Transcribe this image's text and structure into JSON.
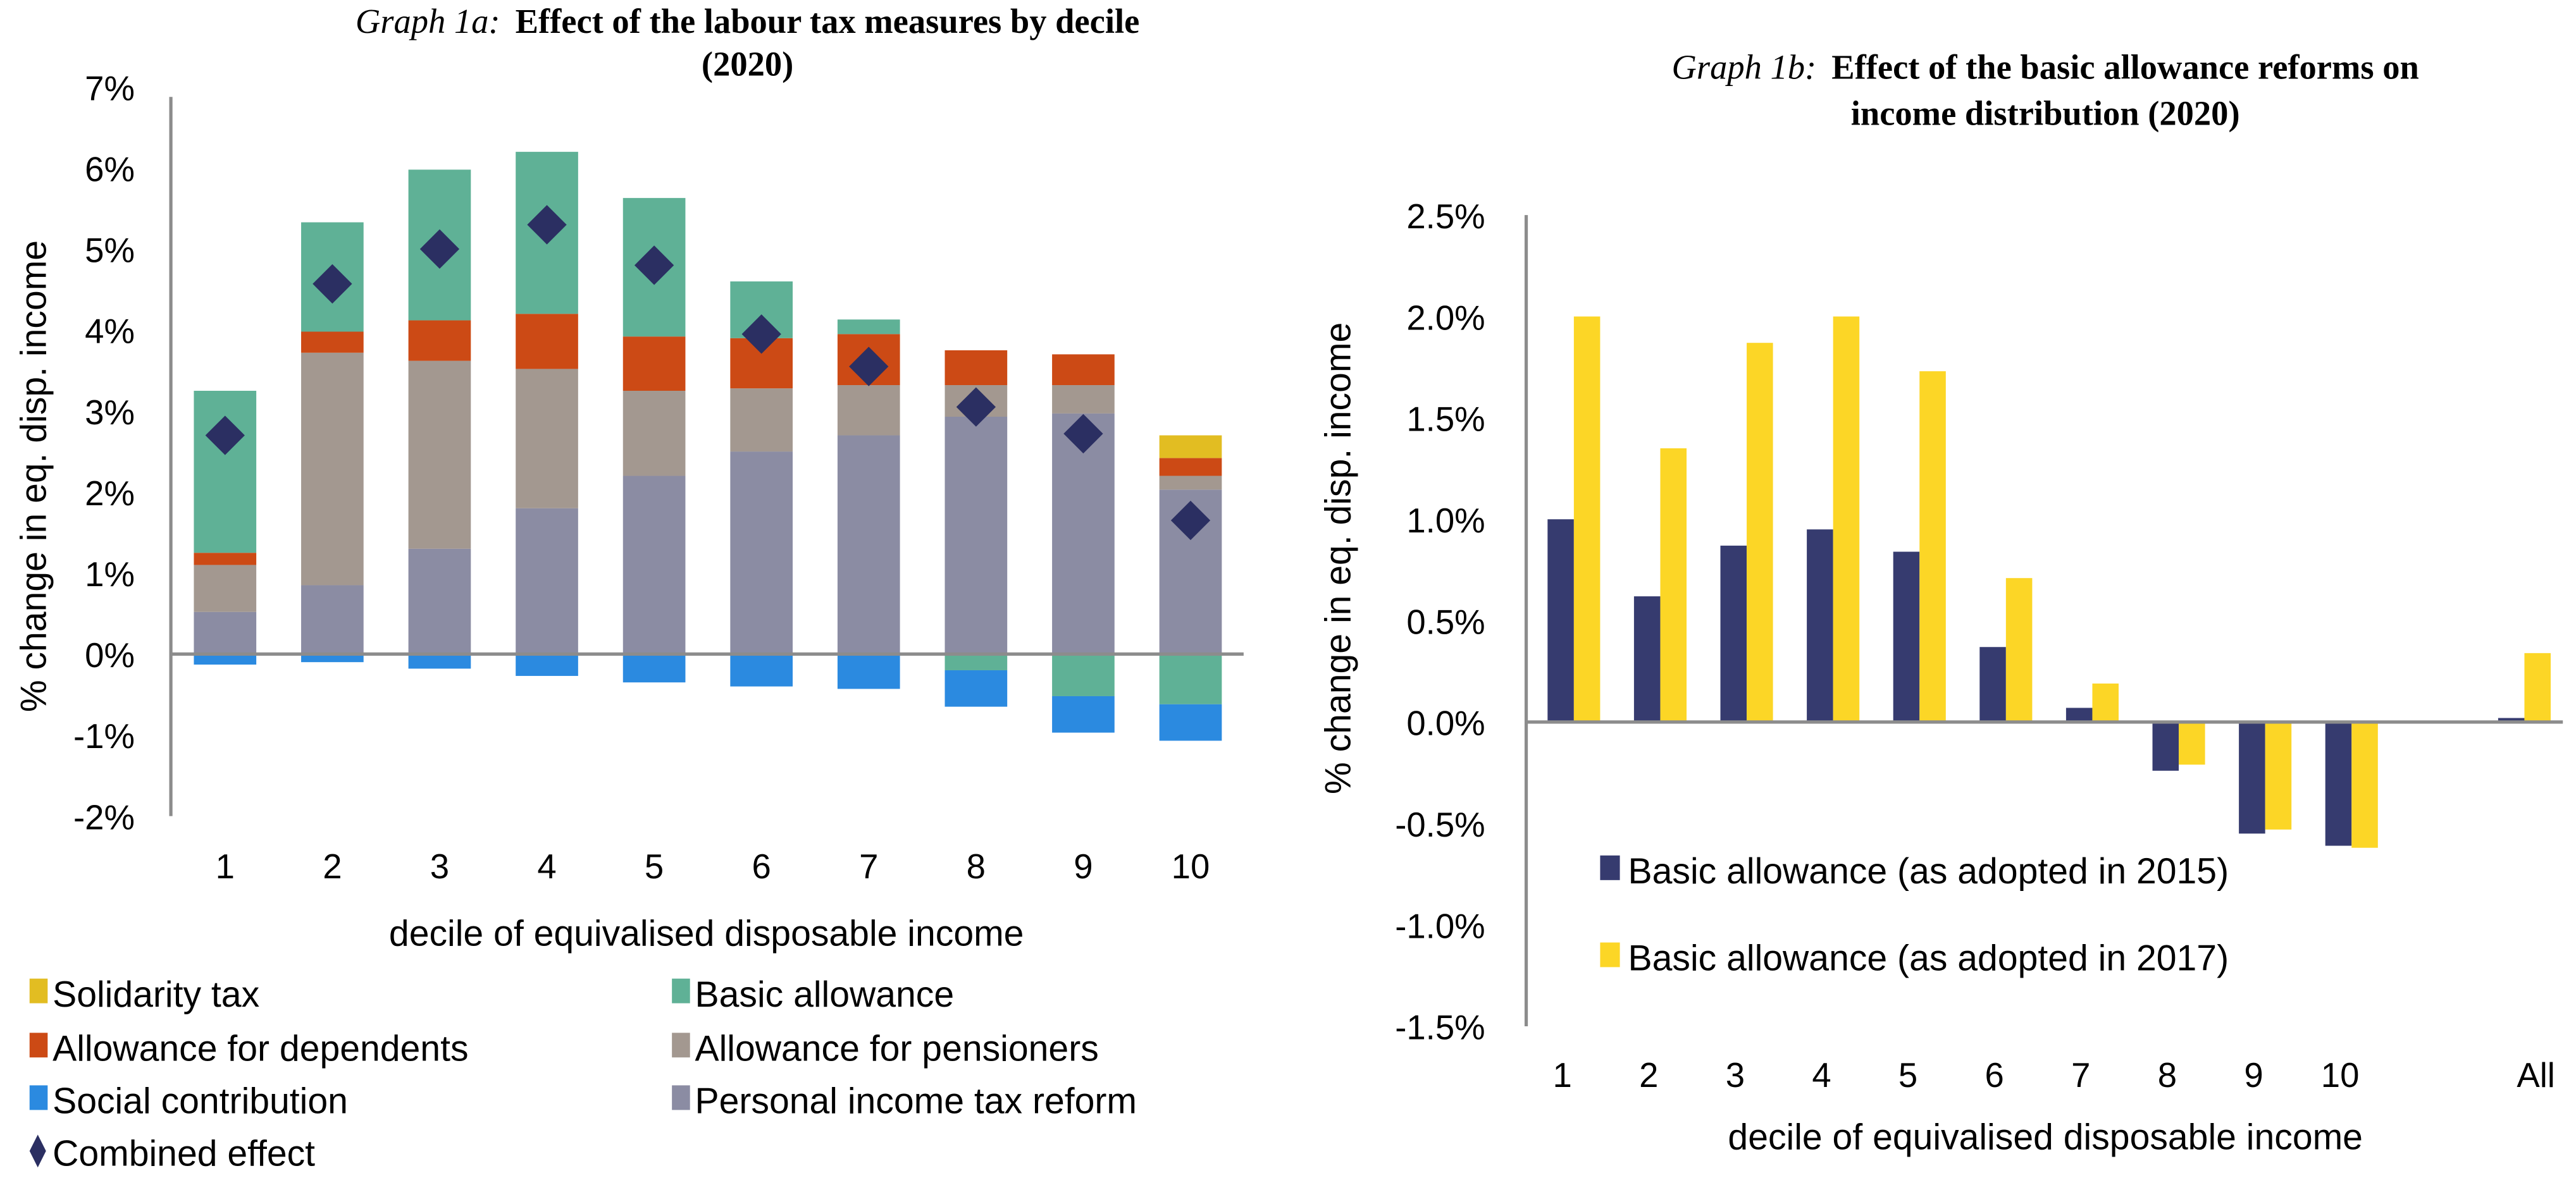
{
  "chart_data": [
    {
      "id": "graph1a",
      "type": "bar",
      "stacked": true,
      "title_prefix": "Graph 1a:",
      "title_main_line1": "Effect of the labour tax measures by decile",
      "title_main_line2": "(2020)",
      "xlabel": "decile of equivalised disposable income",
      "ylabel": "% change in eq. disp. income",
      "ylim": [
        -2,
        7
      ],
      "yticks": [
        7,
        6,
        5,
        4,
        3,
        2,
        1,
        0,
        -1,
        -2
      ],
      "ytick_labels": [
        "7%",
        "6%",
        "5%",
        "4%",
        "3%",
        "2%",
        "1%",
        "0%",
        "-1%",
        "-2%"
      ],
      "categories": [
        "1",
        "2",
        "3",
        "4",
        "5",
        "6",
        "7",
        "8",
        "9",
        "10"
      ],
      "grid": false,
      "legend_position": "bottom",
      "series": [
        {
          "name": "Personal income tax reform",
          "color": "#8b8ca3",
          "values": [
            0.52,
            0.85,
            1.3,
            1.8,
            2.2,
            2.5,
            2.7,
            2.93,
            2.97,
            2.03
          ]
        },
        {
          "name": "Allowance for pensioners",
          "color": "#a39890",
          "values": [
            0.58,
            2.87,
            2.32,
            1.72,
            1.05,
            0.78,
            0.62,
            0.39,
            0.35,
            0.17
          ]
        },
        {
          "name": "Allowance for dependents",
          "color": "#cc4a15",
          "values": [
            0.15,
            0.26,
            0.5,
            0.68,
            0.67,
            0.62,
            0.63,
            0.43,
            0.38,
            0.22
          ]
        },
        {
          "name": "Solidarity tax",
          "color": "#e2bd22",
          "values": [
            0,
            0,
            0,
            0,
            0,
            0,
            0,
            0,
            0,
            0.28
          ]
        },
        {
          "name": "Basic allowance",
          "color": "#5fb196",
          "values": [
            2.0,
            1.35,
            1.86,
            2.0,
            1.71,
            0.7,
            0.18,
            -0.2,
            -0.52,
            -0.62
          ]
        },
        {
          "name": "Social contribution",
          "color": "#2b8ae0",
          "values": [
            -0.13,
            -0.1,
            -0.18,
            -0.27,
            -0.35,
            -0.4,
            -0.43,
            -0.45,
            -0.45,
            -0.45
          ]
        }
      ],
      "combined_effect": {
        "name": "Combined effect",
        "color": "#2b2f62",
        "values": [
          2.7,
          4.57,
          5.0,
          5.3,
          4.8,
          3.95,
          3.55,
          3.05,
          2.72,
          1.65
        ]
      },
      "legend": [
        {
          "name": "Solidarity tax",
          "color": "#e2bd22",
          "marker": "square"
        },
        {
          "name": "Basic allowance",
          "color": "#5fb196",
          "marker": "square"
        },
        {
          "name": "Allowance for dependents",
          "color": "#cc4a15",
          "marker": "square"
        },
        {
          "name": "Allowance for pensioners",
          "color": "#a39890",
          "marker": "square"
        },
        {
          "name": "Social contribution",
          "color": "#2b8ae0",
          "marker": "square"
        },
        {
          "name": "Personal income tax reform",
          "color": "#8b8ca3",
          "marker": "square"
        },
        {
          "name": "Combined effect",
          "color": "#2b2f62",
          "marker": "diamond"
        }
      ]
    },
    {
      "id": "graph1b",
      "type": "bar",
      "stacked": false,
      "title_prefix": "Graph 1b:",
      "title_main_line1": "Effect of the basic allowance reforms on",
      "title_main_line2": "income distribution (2020)",
      "xlabel": "decile of equivalised disposable income",
      "ylabel": "% change in eq. disp. income",
      "ylim": [
        -1.5,
        2.5
      ],
      "yticks": [
        2.5,
        2.0,
        1.5,
        1.0,
        0.5,
        0.0,
        -0.5,
        -1.0,
        -1.5
      ],
      "ytick_labels": [
        "2.5%",
        "2.0%",
        "1.5%",
        "1.0%",
        "0.5%",
        "0.0%",
        "-0.5%",
        "-1.0%",
        "-1.5%"
      ],
      "categories": [
        "1",
        "2",
        "3",
        "4",
        "5",
        "6",
        "7",
        "8",
        "9",
        "10",
        "",
        "All"
      ],
      "grid": false,
      "legend_position": "bottom-left",
      "series": [
        {
          "name": "Basic allowance (as adopted in 2015)",
          "color": "#363b6f",
          "values": [
            1.0,
            0.62,
            0.87,
            0.95,
            0.84,
            0.37,
            0.07,
            -0.24,
            -0.55,
            -0.61,
            null,
            0.02
          ]
        },
        {
          "name": "Basic allowance (as adopted in 2017)",
          "color": "#fcd626",
          "values": [
            2.0,
            1.35,
            1.87,
            2.0,
            1.73,
            0.71,
            0.19,
            -0.21,
            -0.53,
            -0.62,
            null,
            0.34
          ]
        }
      ]
    }
  ]
}
